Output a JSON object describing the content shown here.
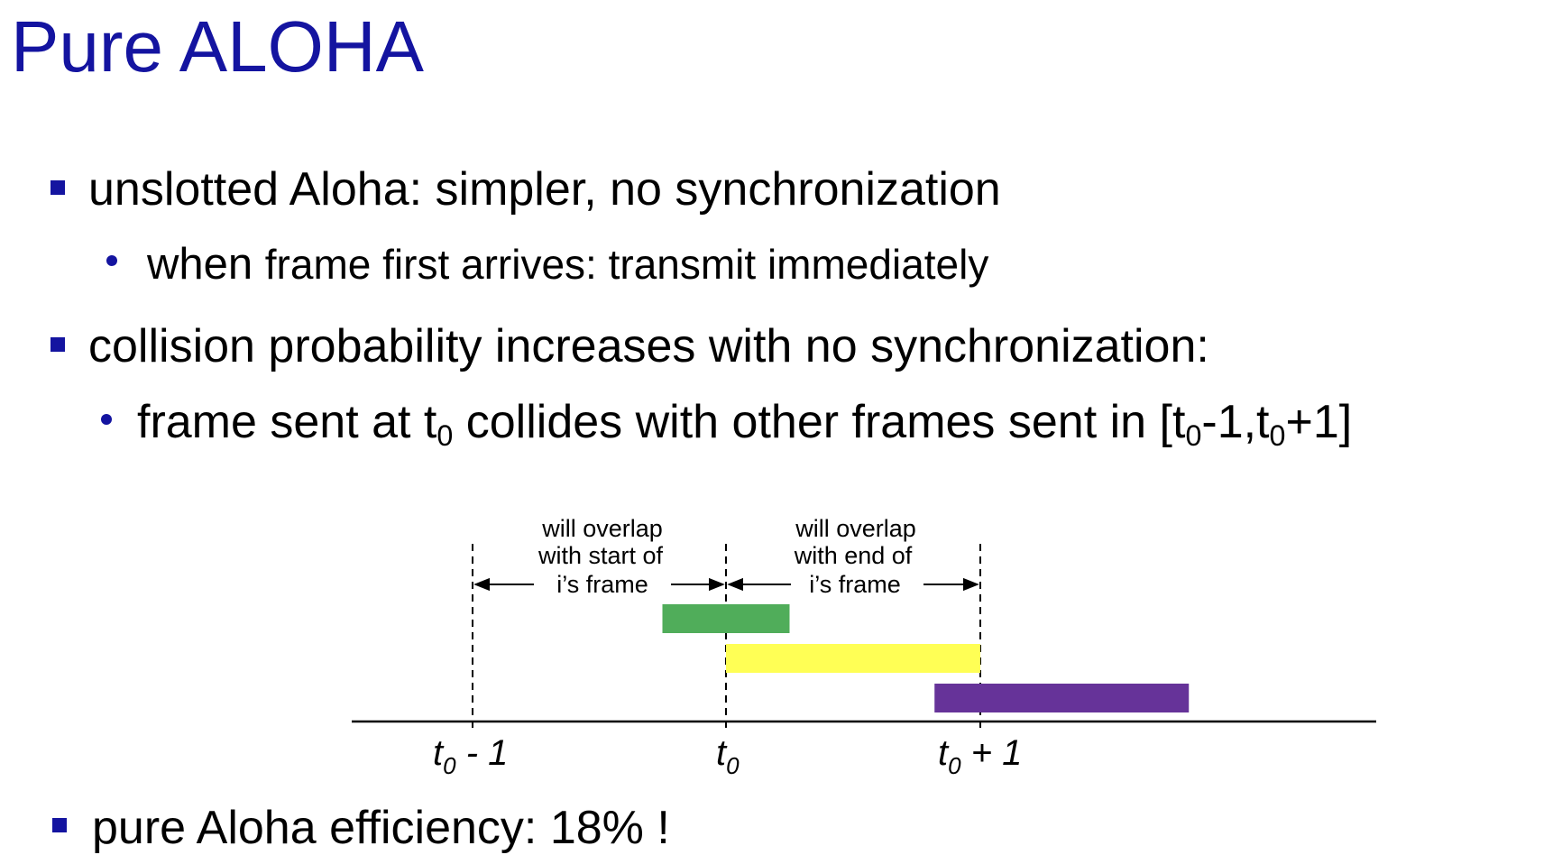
{
  "slide": {
    "title": "Pure ALOHA",
    "bullets": [
      {
        "text": "unslotted Aloha: simpler, no synchronization",
        "subs": [
          {
            "lead": "when",
            "rest": "frame first arrives: transmit immediately"
          }
        ]
      },
      {
        "text": "collision probability increases with no synchronization:",
        "subs": [
          {
            "p1": "frame sent at t",
            "sub1": "0",
            "p2": " collides with other frames sent in [t",
            "sub2": "0",
            "p3": "-1,t",
            "sub3": "0",
            "p4": "+1]"
          }
        ]
      }
    ],
    "final_bullet": "pure Aloha efficiency: 18% !"
  },
  "diagram": {
    "left_label": [
      "will overlap",
      "with start of",
      "i’s frame"
    ],
    "right_label": [
      "will overlap",
      "with end of",
      "i’s frame"
    ],
    "axis_ticks": [
      {
        "base": "t",
        "sub": "0",
        "suffix": " - 1"
      },
      {
        "base": "t",
        "sub": "0",
        "suffix": ""
      },
      {
        "base": "t",
        "sub": "0",
        "suffix": " + 1"
      }
    ],
    "frames": [
      {
        "name": "green-frame",
        "color": "#50ad5a",
        "start": -0.25,
        "end": 0.25,
        "row": 0
      },
      {
        "name": "yellow-frame",
        "color": "#ffff55",
        "start": 0,
        "end": 1,
        "row": 1
      },
      {
        "name": "purple-frame",
        "color": "#663399",
        "start": 0.82,
        "end": 1.82,
        "row": 2
      }
    ],
    "colors": {
      "title": "#1414a0",
      "bullet": "#1414a0"
    }
  }
}
